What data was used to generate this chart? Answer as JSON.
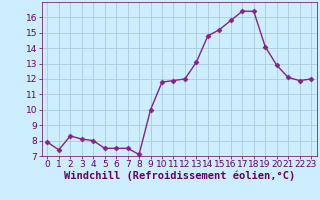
{
  "x": [
    0,
    1,
    2,
    3,
    4,
    5,
    6,
    7,
    8,
    9,
    10,
    11,
    12,
    13,
    14,
    15,
    16,
    17,
    18,
    19,
    20,
    21,
    22,
    23
  ],
  "y": [
    7.9,
    7.4,
    8.3,
    8.1,
    8.0,
    7.5,
    7.5,
    7.5,
    7.1,
    10.0,
    11.8,
    11.9,
    12.0,
    13.1,
    14.8,
    15.2,
    15.8,
    16.4,
    16.4,
    14.1,
    12.9,
    12.1,
    11.9,
    12.0
  ],
  "line_color": "#882288",
  "marker_color": "#882288",
  "marker": "D",
  "marker_size": 2.5,
  "bg_color": "#cceeff",
  "grid_color": "#aaccdd",
  "text_color": "#660066",
  "xlabel": "Windchill (Refroidissement éolien,°C)",
  "xlim": [
    -0.5,
    23.5
  ],
  "ylim": [
    7,
    17
  ],
  "yticks": [
    7,
    8,
    9,
    10,
    11,
    12,
    13,
    14,
    15,
    16
  ],
  "xticks": [
    0,
    1,
    2,
    3,
    4,
    5,
    6,
    7,
    8,
    9,
    10,
    11,
    12,
    13,
    14,
    15,
    16,
    17,
    18,
    19,
    20,
    21,
    22,
    23
  ],
  "tick_label_fontsize": 6.5,
  "xlabel_fontsize": 7.5,
  "linewidth": 1.0
}
